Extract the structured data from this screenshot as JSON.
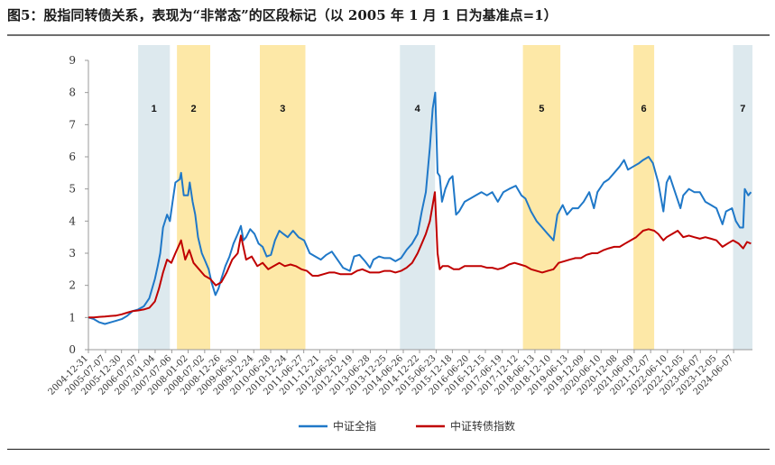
{
  "title": "图5：股指同转债关系，表现为“非常态”的区段标记（以 2005 年 1 月 1 日为基准点=1）",
  "chart_data": {
    "type": "line",
    "title": "图5：股指同转债关系，表现为“非常态”的区段标记（以 2005 年 1 月 1 日为基准点=1）",
    "xlabel": "",
    "ylabel": "",
    "ylim": [
      0,
      9
    ],
    "yticks": [
      0,
      1,
      2,
      3,
      4,
      5,
      6,
      7,
      8,
      9
    ],
    "xlim": [
      "2004-12-31",
      "2024-12-31"
    ],
    "x_tick_labels": [
      "2004-12-31",
      "2005-07-07",
      "2005-12-30",
      "2006-07-07",
      "2007-01-04",
      "2007-07-06",
      "2008-01-02",
      "2008-07-02",
      "2008-12-26",
      "2009-06-30",
      "2009-12-24",
      "2010-06-28",
      "2010-12-24",
      "2011-06-27",
      "2011-12-21",
      "2012-06-26",
      "2012-12-19",
      "2013-06-28",
      "2013-12-25",
      "2014-06-26",
      "2014-12-22",
      "2015-06-23",
      "2015-12-18",
      "2016-06-20",
      "2016-12-15",
      "2017-06-19",
      "2017-12-12",
      "2018-06-13",
      "2018-12-10",
      "2019-06-13",
      "2019-12-09",
      "2020-06-10",
      "2020-12-08",
      "2021-06-09",
      "2021-12-07",
      "2022-06-10",
      "2022-12-05",
      "2023-06-07",
      "2023-12-05",
      "2024-06-07"
    ],
    "grid": false,
    "legend_position": "bottom",
    "colors": {
      "csi_all": "#1f78c8",
      "cb_index": "#c00000",
      "band_blue": "#dde9ee",
      "band_yellow": "#fde8a7"
    },
    "bands": [
      {
        "label": "1",
        "color": "blue",
        "start": "2006-07-01",
        "end": "2007-06-15"
      },
      {
        "label": "2",
        "color": "yellow",
        "start": "2007-09-01",
        "end": "2008-09-01"
      },
      {
        "label": "3",
        "color": "yellow",
        "start": "2010-03-01",
        "end": "2011-07-15"
      },
      {
        "label": "4",
        "color": "blue",
        "start": "2014-05-20",
        "end": "2015-06-10"
      },
      {
        "label": "5",
        "color": "yellow",
        "start": "2018-02-01",
        "end": "2019-03-20"
      },
      {
        "label": "6",
        "color": "yellow",
        "start": "2021-06-01",
        "end": "2022-01-15"
      },
      {
        "label": "7",
        "color": "blue",
        "start": "2024-06-01",
        "end": "2024-12-31"
      }
    ],
    "series": [
      {
        "name": "中证全指",
        "color": "#1f78c8",
        "x": [
          "2005-01-01",
          "2005-03-01",
          "2005-05-01",
          "2005-07-01",
          "2005-09-01",
          "2005-11-01",
          "2006-01-01",
          "2006-03-01",
          "2006-05-01",
          "2006-07-01",
          "2006-09-01",
          "2006-11-01",
          "2007-01-01",
          "2007-02-01",
          "2007-03-01",
          "2007-04-01",
          "2007-05-15",
          "2007-06-15",
          "2007-07-15",
          "2007-08-15",
          "2007-10-01",
          "2007-10-16",
          "2007-11-15",
          "2008-01-01",
          "2008-01-20",
          "2008-02-20",
          "2008-03-20",
          "2008-04-20",
          "2008-06-01",
          "2008-07-01",
          "2008-08-15",
          "2008-09-15",
          "2008-10-28",
          "2008-12-01",
          "2009-01-01",
          "2009-02-15",
          "2009-04-01",
          "2009-05-15",
          "2009-07-01",
          "2009-08-04",
          "2009-09-01",
          "2009-10-01",
          "2009-11-15",
          "2010-01-01",
          "2010-02-15",
          "2010-04-01",
          "2010-05-15",
          "2010-07-01",
          "2010-08-15",
          "2010-10-01",
          "2010-11-15",
          "2011-01-01",
          "2011-03-01",
          "2011-05-01",
          "2011-07-01",
          "2011-09-01",
          "2011-11-01",
          "2012-01-01",
          "2012-03-01",
          "2012-05-01",
          "2012-07-01",
          "2012-09-01",
          "2012-11-15",
          "2013-01-01",
          "2013-03-01",
          "2013-05-01",
          "2013-06-25",
          "2013-08-01",
          "2013-10-01",
          "2013-12-01",
          "2014-02-01",
          "2014-04-01",
          "2014-06-01",
          "2014-08-01",
          "2014-10-01",
          "2014-12-01",
          "2015-01-15",
          "2015-03-01",
          "2015-04-15",
          "2015-05-15",
          "2015-06-12",
          "2015-07-08",
          "2015-08-01",
          "2015-08-26",
          "2015-10-01",
          "2015-11-15",
          "2015-12-20",
          "2016-01-28",
          "2016-03-01",
          "2016-05-01",
          "2016-07-01",
          "2016-09-01",
          "2016-11-01",
          "2017-01-01",
          "2017-03-01",
          "2017-05-01",
          "2017-07-01",
          "2017-09-01",
          "2017-11-15",
          "2018-01-15",
          "2018-03-01",
          "2018-05-01",
          "2018-07-01",
          "2018-09-01",
          "2018-11-01",
          "2019-01-03",
          "2019-02-15",
          "2019-04-15",
          "2019-06-01",
          "2019-08-01",
          "2019-10-01",
          "2019-12-01",
          "2020-02-01",
          "2020-03-23",
          "2020-05-01",
          "2020-07-10",
          "2020-09-01",
          "2020-11-01",
          "2021-01-01",
          "2021-02-18",
          "2021-04-01",
          "2021-06-01",
          "2021-08-01",
          "2021-09-15",
          "2021-11-15",
          "2022-01-01",
          "2022-03-01",
          "2022-04-26",
          "2022-06-01",
          "2022-07-05",
          "2022-09-01",
          "2022-10-31",
          "2022-12-01",
          "2023-02-01",
          "2023-04-01",
          "2023-06-01",
          "2023-08-01",
          "2023-10-01",
          "2023-12-01",
          "2024-02-05",
          "2024-03-15",
          "2024-05-20",
          "2024-07-01",
          "2024-08-15",
          "2024-09-20",
          "2024-10-08",
          "2024-11-15",
          "2024-12-15"
        ],
        "values": [
          1.0,
          0.95,
          0.85,
          0.8,
          0.85,
          0.9,
          0.95,
          1.05,
          1.2,
          1.25,
          1.35,
          1.6,
          2.2,
          2.6,
          3.0,
          3.8,
          4.2,
          4.0,
          4.6,
          5.2,
          5.3,
          5.5,
          4.8,
          4.8,
          5.2,
          4.6,
          4.2,
          3.5,
          3.0,
          2.8,
          2.5,
          2.1,
          1.7,
          1.9,
          2.2,
          2.6,
          2.9,
          3.3,
          3.6,
          3.85,
          3.4,
          3.5,
          3.75,
          3.6,
          3.3,
          3.2,
          2.9,
          2.95,
          3.4,
          3.7,
          3.6,
          3.5,
          3.7,
          3.5,
          3.4,
          3.0,
          2.9,
          2.8,
          2.95,
          3.05,
          2.8,
          2.55,
          2.45,
          2.9,
          2.95,
          2.75,
          2.55,
          2.8,
          2.9,
          2.85,
          2.85,
          2.75,
          2.85,
          3.1,
          3.3,
          3.6,
          4.3,
          4.9,
          6.3,
          7.5,
          8.0,
          5.5,
          5.4,
          4.6,
          5.0,
          5.3,
          5.4,
          4.2,
          4.3,
          4.6,
          4.7,
          4.8,
          4.9,
          4.8,
          4.9,
          4.6,
          4.9,
          5.0,
          5.1,
          4.8,
          4.7,
          4.3,
          4.0,
          3.8,
          3.6,
          3.4,
          4.2,
          4.5,
          4.2,
          4.4,
          4.4,
          4.6,
          4.9,
          4.4,
          4.9,
          5.2,
          5.3,
          5.5,
          5.7,
          5.9,
          5.6,
          5.7,
          5.8,
          5.9,
          6.0,
          5.8,
          5.2,
          4.3,
          5.2,
          5.4,
          4.9,
          4.4,
          4.8,
          5.0,
          4.9,
          4.9,
          4.6,
          4.5,
          4.4,
          3.9,
          4.3,
          4.4,
          4.0,
          3.8,
          3.8,
          5.0,
          4.8,
          4.9
        ]
      },
      {
        "name": "中证转债指数",
        "color": "#c00000",
        "x": [
          "2005-01-01",
          "2005-03-01",
          "2005-05-01",
          "2005-07-01",
          "2005-09-01",
          "2005-11-01",
          "2006-01-01",
          "2006-03-01",
          "2006-05-01",
          "2006-07-01",
          "2006-09-01",
          "2006-11-01",
          "2007-01-01",
          "2007-02-15",
          "2007-04-01",
          "2007-05-15",
          "2007-07-01",
          "2007-08-15",
          "2007-10-01",
          "2007-10-16",
          "2007-12-01",
          "2008-01-15",
          "2008-03-01",
          "2008-05-01",
          "2008-07-01",
          "2008-09-01",
          "2008-11-01",
          "2009-01-01",
          "2009-03-01",
          "2009-05-01",
          "2009-07-01",
          "2009-08-04",
          "2009-10-01",
          "2009-12-01",
          "2010-02-01",
          "2010-04-01",
          "2010-06-01",
          "2010-08-01",
          "2010-10-01",
          "2010-12-01",
          "2011-02-01",
          "2011-04-01",
          "2011-06-01",
          "2011-08-01",
          "2011-10-01",
          "2011-12-01",
          "2012-02-01",
          "2012-04-01",
          "2012-06-01",
          "2012-08-01",
          "2012-10-01",
          "2012-12-01",
          "2013-02-01",
          "2013-04-01",
          "2013-06-25",
          "2013-08-01",
          "2013-10-01",
          "2013-12-01",
          "2014-02-01",
          "2014-04-01",
          "2014-06-01",
          "2014-08-01",
          "2014-10-01",
          "2014-12-01",
          "2015-01-15",
          "2015-03-01",
          "2015-04-15",
          "2015-06-08",
          "2015-07-08",
          "2015-08-01",
          "2015-09-01",
          "2015-11-01",
          "2016-01-01",
          "2016-03-01",
          "2016-05-01",
          "2016-07-01",
          "2016-09-01",
          "2016-11-01",
          "2017-01-01",
          "2017-03-01",
          "2017-05-01",
          "2017-07-01",
          "2017-09-01",
          "2017-11-01",
          "2018-01-01",
          "2018-03-01",
          "2018-05-01",
          "2018-07-01",
          "2018-09-01",
          "2018-11-01",
          "2019-01-03",
          "2019-03-01",
          "2019-05-01",
          "2019-07-01",
          "2019-09-01",
          "2019-11-01",
          "2020-01-01",
          "2020-03-01",
          "2020-05-01",
          "2020-07-10",
          "2020-09-01",
          "2020-11-01",
          "2021-01-01",
          "2021-03-01",
          "2021-05-01",
          "2021-07-01",
          "2021-09-15",
          "2021-11-15",
          "2022-01-15",
          "2022-03-01",
          "2022-04-26",
          "2022-06-01",
          "2022-08-01",
          "2022-10-01",
          "2022-12-01",
          "2023-02-01",
          "2023-04-01",
          "2023-06-01",
          "2023-08-01",
          "2023-10-01",
          "2023-12-01",
          "2024-02-05",
          "2024-04-01",
          "2024-06-01",
          "2024-08-01",
          "2024-09-20",
          "2024-11-01",
          "2024-12-15"
        ],
        "values": [
          1.0,
          1.0,
          1.02,
          1.03,
          1.05,
          1.06,
          1.1,
          1.15,
          1.2,
          1.22,
          1.25,
          1.3,
          1.5,
          1.9,
          2.4,
          2.8,
          2.7,
          3.0,
          3.3,
          3.4,
          2.8,
          3.1,
          2.7,
          2.5,
          2.3,
          2.2,
          2.0,
          2.1,
          2.4,
          2.8,
          3.0,
          3.55,
          2.8,
          2.9,
          2.6,
          2.7,
          2.5,
          2.6,
          2.7,
          2.6,
          2.65,
          2.6,
          2.5,
          2.45,
          2.3,
          2.3,
          2.35,
          2.4,
          2.4,
          2.35,
          2.35,
          2.35,
          2.45,
          2.5,
          2.4,
          2.4,
          2.4,
          2.45,
          2.45,
          2.4,
          2.45,
          2.55,
          2.7,
          3.0,
          3.3,
          3.6,
          4.0,
          4.9,
          3.0,
          2.5,
          2.6,
          2.6,
          2.5,
          2.5,
          2.6,
          2.6,
          2.6,
          2.6,
          2.55,
          2.55,
          2.5,
          2.55,
          2.65,
          2.7,
          2.65,
          2.6,
          2.5,
          2.45,
          2.4,
          2.45,
          2.5,
          2.7,
          2.75,
          2.8,
          2.85,
          2.85,
          2.95,
          3.0,
          3.0,
          3.1,
          3.15,
          3.2,
          3.2,
          3.3,
          3.4,
          3.5,
          3.7,
          3.75,
          3.7,
          3.6,
          3.4,
          3.5,
          3.6,
          3.7,
          3.5,
          3.55,
          3.5,
          3.45,
          3.5,
          3.45,
          3.4,
          3.2,
          3.3,
          3.4,
          3.3,
          3.15,
          3.35,
          3.3
        ]
      }
    ]
  },
  "legend": [
    {
      "name": "中证全指",
      "color": "#1f78c8"
    },
    {
      "name": "中证转债指数",
      "color": "#c00000"
    }
  ]
}
